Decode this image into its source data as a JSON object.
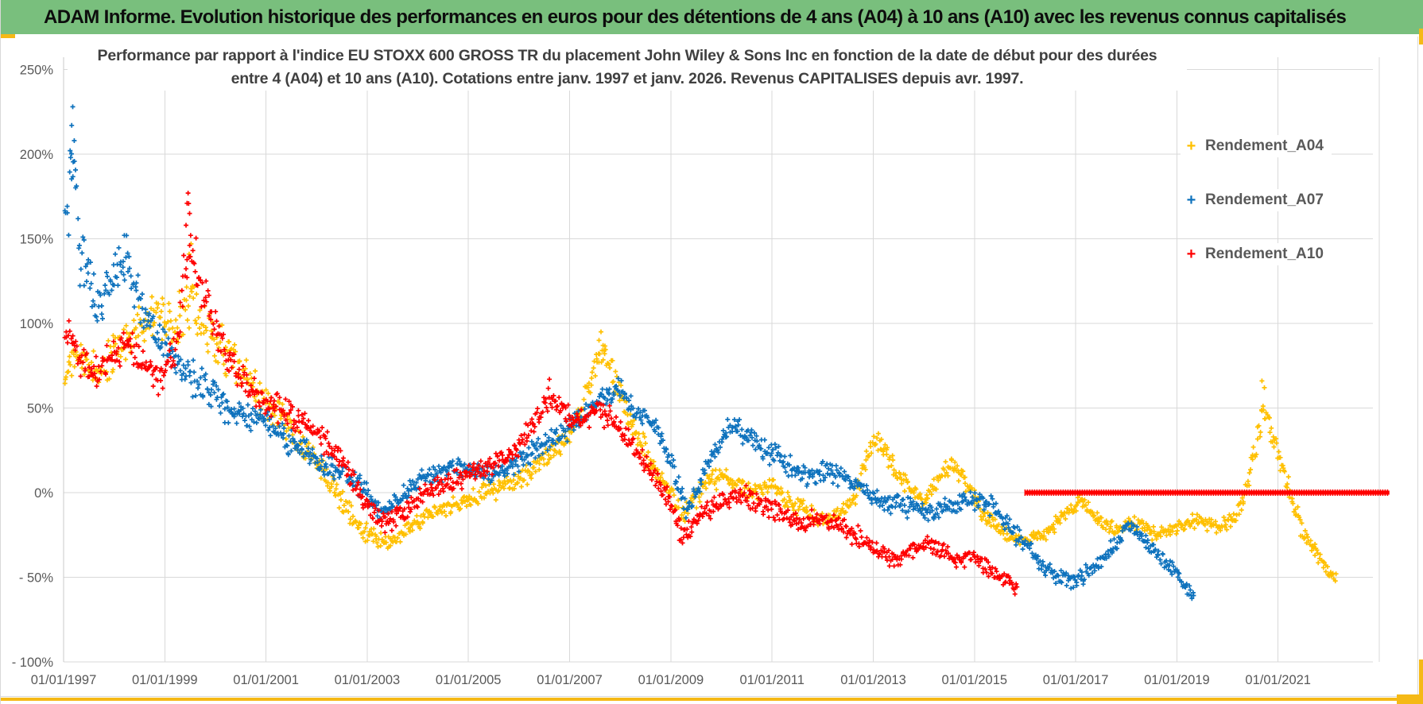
{
  "header": {
    "title": "ADAM Informe. Evolution historique des performances en euros pour des détentions de 4 ans (A04) à 10 ans (A10) avec les revenus connus capitalisés",
    "bg_color": "#79bf7d"
  },
  "chart": {
    "title_line1": "Performance par rapport à l'indice EU STOXX 600 GROSS TR  du placement John Wiley & Sons Inc en fonction de la date de début pour des durées",
    "title_line2": "entre 4 (A04) et 10 ans (A10). Cotations entre janv. 1997 et janv. 2026. Revenus CAPITALISES depuis avr. 1997.",
    "legend": [
      {
        "label": "Rendement_A04",
        "symbol": "+",
        "color": "#ffc000"
      },
      {
        "label": "Rendement_A07",
        "symbol": "+",
        "color": "#0e72bd"
      },
      {
        "label": "Rendement_A10",
        "symbol": "+",
        "color": "#fe0000"
      }
    ]
  },
  "accents": {
    "selection_gold": "#f5b916",
    "gridline": "#d9d9d9",
    "axis_text": "#595959"
  },
  "chart_data": {
    "type": "scatter",
    "marker": "plus",
    "grid": true,
    "legend_position": "right-inside-top",
    "values_estimated": true,
    "title": "Performance par rapport à l'indice EU STOXX 600 GROSS TR du placement John Wiley & Sons Inc en fonction de la date de début pour des durées entre 4 (A04) et 10 ans (A10). Cotations entre janv. 1997 et janv. 2026. Revenus CAPITALISES depuis avr. 1997.",
    "x_axis": {
      "tick_labels": [
        "01/01/1997",
        "01/01/1999",
        "01/01/2001",
        "01/01/2003",
        "01/01/2005",
        "01/01/2007",
        "01/01/2009",
        "01/01/2011",
        "01/01/2013",
        "01/01/2015",
        "01/01/2017",
        "01/01/2019",
        "01/01/2021"
      ],
      "tick_years": [
        1997,
        1999,
        2001,
        2003,
        2005,
        2007,
        2009,
        2011,
        2013,
        2015,
        2017,
        2019,
        2021
      ],
      "gridline_years": [
        1997,
        1999,
        2001,
        2003,
        2005,
        2007,
        2009,
        2011,
        2013,
        2015,
        2017,
        2019,
        2021,
        2023
      ],
      "range": [
        1997,
        2023.2
      ]
    },
    "y_axis": {
      "tick_labels": [
        "250%",
        "200%",
        "150%",
        "100%",
        "50%",
        "0%",
        "- 50%",
        "- 100%"
      ],
      "tick_values": [
        250,
        200,
        150,
        100,
        50,
        0,
        -50,
        -100
      ],
      "range": [
        -100,
        250
      ],
      "unit": "%"
    },
    "series": [
      {
        "name": "Rendement_A04",
        "color": "#ffc000",
        "x_start": 1997.02,
        "x_end": 2022.15,
        "anchors": [
          [
            1997.02,
            68,
            16
          ],
          [
            1997.25,
            84,
            14
          ],
          [
            1997.55,
            72,
            12
          ],
          [
            1998.0,
            80,
            16
          ],
          [
            1998.4,
            95,
            15
          ],
          [
            1998.8,
            104,
            18
          ],
          [
            1999.2,
            100,
            20
          ],
          [
            1999.5,
            118,
            24
          ],
          [
            1999.8,
            96,
            18
          ],
          [
            2000.2,
            84,
            16
          ],
          [
            2000.6,
            70,
            14
          ],
          [
            2001.0,
            55,
            13
          ],
          [
            2001.4,
            40,
            11
          ],
          [
            2001.8,
            25,
            10
          ],
          [
            2002.2,
            10,
            9
          ],
          [
            2002.6,
            -10,
            8
          ],
          [
            2003.0,
            -25,
            7
          ],
          [
            2003.4,
            -30,
            6
          ],
          [
            2003.8,
            -22,
            6
          ],
          [
            2004.2,
            -12,
            6
          ],
          [
            2004.7,
            -7,
            6
          ],
          [
            2005.1,
            -3,
            7
          ],
          [
            2005.5,
            2,
            7
          ],
          [
            2005.9,
            6,
            7
          ],
          [
            2006.3,
            14,
            7
          ],
          [
            2006.7,
            24,
            8
          ],
          [
            2007.0,
            35,
            8
          ],
          [
            2007.3,
            55,
            9
          ],
          [
            2007.6,
            84,
            10
          ],
          [
            2007.85,
            72,
            10
          ],
          [
            2008.1,
            50,
            10
          ],
          [
            2008.4,
            30,
            9
          ],
          [
            2008.7,
            12,
            8
          ],
          [
            2009.0,
            0,
            8
          ],
          [
            2009.25,
            -14,
            8
          ],
          [
            2009.5,
            -2,
            8
          ],
          [
            2009.8,
            9,
            7
          ],
          [
            2010.2,
            7,
            7
          ],
          [
            2010.6,
            0,
            7
          ],
          [
            2011.0,
            4,
            7
          ],
          [
            2011.4,
            -6,
            7
          ],
          [
            2011.8,
            -14,
            6
          ],
          [
            2012.2,
            -17,
            6
          ],
          [
            2012.6,
            -6,
            7
          ],
          [
            2013.0,
            33,
            9
          ],
          [
            2013.3,
            20,
            8
          ],
          [
            2013.7,
            4,
            7
          ],
          [
            2014.0,
            -7,
            6
          ],
          [
            2014.5,
            18,
            8
          ],
          [
            2014.8,
            8,
            7
          ],
          [
            2015.2,
            -14,
            6
          ],
          [
            2015.6,
            -24,
            5
          ],
          [
            2016.0,
            -28,
            5
          ],
          [
            2016.4,
            -25,
            5
          ],
          [
            2016.8,
            -12,
            6
          ],
          [
            2017.1,
            -3,
            6
          ],
          [
            2017.4,
            -15,
            5
          ],
          [
            2017.8,
            -22,
            5
          ],
          [
            2018.2,
            -18,
            5
          ],
          [
            2018.6,
            -25,
            5
          ],
          [
            2019.0,
            -20,
            5
          ],
          [
            2019.4,
            -16,
            5
          ],
          [
            2019.8,
            -21,
            5
          ],
          [
            2020.2,
            -13,
            6
          ],
          [
            2020.5,
            18,
            10
          ],
          [
            2020.7,
            52,
            11
          ],
          [
            2020.9,
            34,
            9
          ],
          [
            2021.2,
            4,
            8
          ],
          [
            2021.5,
            -24,
            6
          ],
          [
            2021.8,
            -37,
            5
          ],
          [
            2022.15,
            -52,
            4
          ]
        ],
        "highlights": [
          [
            2007.62,
            95
          ],
          [
            2007.58,
            90
          ],
          [
            2007.66,
            87
          ],
          [
            2020.68,
            66
          ],
          [
            2020.73,
            62
          ],
          [
            1999.52,
            147
          ],
          [
            1999.48,
            141
          ]
        ]
      },
      {
        "name": "Rendement_A07",
        "color": "#0e72bd",
        "x_start": 1997.03,
        "x_end": 2019.33,
        "anchors": [
          [
            1997.03,
            150,
            25
          ],
          [
            1997.17,
            196,
            32
          ],
          [
            1997.35,
            135,
            22
          ],
          [
            1997.7,
            112,
            16
          ],
          [
            1998.0,
            126,
            18
          ],
          [
            1998.25,
            138,
            16
          ],
          [
            1998.55,
            110,
            15
          ],
          [
            1998.85,
            92,
            13
          ],
          [
            1999.2,
            80,
            12
          ],
          [
            1999.6,
            66,
            12
          ],
          [
            2000.0,
            56,
            12
          ],
          [
            2000.4,
            46,
            10
          ],
          [
            2000.9,
            44,
            10
          ],
          [
            2001.3,
            34,
            10
          ],
          [
            2001.7,
            27,
            9
          ],
          [
            2002.1,
            16,
            8
          ],
          [
            2002.5,
            11,
            8
          ],
          [
            2002.9,
            4,
            8
          ],
          [
            2003.25,
            -12,
            7
          ],
          [
            2003.6,
            -5,
            7
          ],
          [
            2004.0,
            8,
            7
          ],
          [
            2004.5,
            13,
            7
          ],
          [
            2004.9,
            15,
            7
          ],
          [
            2005.3,
            10,
            7
          ],
          [
            2005.7,
            13,
            7
          ],
          [
            2006.1,
            21,
            7
          ],
          [
            2006.5,
            29,
            8
          ],
          [
            2006.9,
            36,
            8
          ],
          [
            2007.3,
            47,
            8
          ],
          [
            2007.7,
            57,
            8
          ],
          [
            2007.95,
            62,
            8
          ],
          [
            2008.2,
            51,
            8
          ],
          [
            2008.5,
            45,
            8
          ],
          [
            2008.8,
            34,
            8
          ],
          [
            2009.1,
            8,
            9
          ],
          [
            2009.3,
            -11,
            8
          ],
          [
            2009.6,
            6,
            8
          ],
          [
            2009.9,
            26,
            9
          ],
          [
            2010.2,
            41,
            8
          ],
          [
            2010.5,
            34,
            8
          ],
          [
            2010.9,
            24,
            8
          ],
          [
            2011.3,
            17,
            8
          ],
          [
            2011.7,
            10,
            8
          ],
          [
            2012.1,
            12,
            8
          ],
          [
            2012.5,
            9,
            7
          ],
          [
            2012.9,
            -1,
            7
          ],
          [
            2013.3,
            -6,
            7
          ],
          [
            2013.7,
            -9,
            7
          ],
          [
            2014.1,
            -12,
            7
          ],
          [
            2014.5,
            -8,
            7
          ],
          [
            2014.9,
            -5,
            7
          ],
          [
            2015.15,
            -3,
            7
          ],
          [
            2015.45,
            -11,
            7
          ],
          [
            2015.75,
            -23,
            7
          ],
          [
            2016.05,
            -33,
            7
          ],
          [
            2016.35,
            -43,
            6
          ],
          [
            2016.65,
            -49,
            6
          ],
          [
            2016.95,
            -53,
            6
          ],
          [
            2017.25,
            -47,
            6
          ],
          [
            2017.55,
            -39,
            6
          ],
          [
            2017.85,
            -27,
            6
          ],
          [
            2018.05,
            -19,
            6
          ],
          [
            2018.35,
            -29,
            6
          ],
          [
            2018.65,
            -38,
            6
          ],
          [
            2018.95,
            -46,
            5
          ],
          [
            2019.15,
            -55,
            5
          ],
          [
            2019.33,
            -62,
            4
          ]
        ],
        "highlights": [
          [
            1997.18,
            228
          ],
          [
            1997.16,
            217
          ],
          [
            1997.21,
            208
          ],
          [
            1997.14,
            198
          ],
          [
            1998.2,
            152
          ]
        ]
      },
      {
        "name": "Rendement_A10",
        "color": "#fe0000",
        "x_start": 1997.03,
        "x_end": 2015.85,
        "anchors": [
          [
            1997.03,
            95,
            12
          ],
          [
            1997.3,
            81,
            12
          ],
          [
            1997.6,
            69,
            10
          ],
          [
            1998.0,
            82,
            12
          ],
          [
            1998.3,
            90,
            12
          ],
          [
            1998.6,
            76,
            11
          ],
          [
            1998.95,
            66,
            11
          ],
          [
            1999.25,
            92,
            15
          ],
          [
            1999.46,
            148,
            24
          ],
          [
            1999.65,
            132,
            18
          ],
          [
            1999.95,
            100,
            15
          ],
          [
            2000.25,
            80,
            12
          ],
          [
            2000.65,
            62,
            10
          ],
          [
            2001.05,
            52,
            10
          ],
          [
            2001.45,
            46,
            10
          ],
          [
            2001.85,
            40,
            9
          ],
          [
            2002.25,
            28,
            9
          ],
          [
            2002.65,
            12,
            8
          ],
          [
            2003.0,
            -9,
            8
          ],
          [
            2003.35,
            -19,
            7
          ],
          [
            2003.7,
            -11,
            7
          ],
          [
            2004.1,
            -1,
            7
          ],
          [
            2004.5,
            5,
            7
          ],
          [
            2004.9,
            9,
            7
          ],
          [
            2005.3,
            15,
            7
          ],
          [
            2005.7,
            19,
            7
          ],
          [
            2006.05,
            29,
            8
          ],
          [
            2006.35,
            44,
            8
          ],
          [
            2006.6,
            57,
            8
          ],
          [
            2006.9,
            47,
            8
          ],
          [
            2007.2,
            42,
            8
          ],
          [
            2007.5,
            48,
            8
          ],
          [
            2007.8,
            44,
            8
          ],
          [
            2008.1,
            33,
            8
          ],
          [
            2008.4,
            21,
            8
          ],
          [
            2008.7,
            8,
            8
          ],
          [
            2009.0,
            -7,
            8
          ],
          [
            2009.25,
            -27,
            8
          ],
          [
            2009.55,
            -14,
            7
          ],
          [
            2009.85,
            -8,
            7
          ],
          [
            2010.15,
            -4,
            7
          ],
          [
            2010.45,
            -2,
            7
          ],
          [
            2010.85,
            -8,
            7
          ],
          [
            2011.25,
            -13,
            7
          ],
          [
            2011.65,
            -18,
            7
          ],
          [
            2012.05,
            -15,
            7
          ],
          [
            2012.45,
            -22,
            7
          ],
          [
            2012.85,
            -28,
            7
          ],
          [
            2013.15,
            -35,
            7
          ],
          [
            2013.45,
            -41,
            6
          ],
          [
            2013.75,
            -35,
            6
          ],
          [
            2014.05,
            -30,
            6
          ],
          [
            2014.35,
            -35,
            6
          ],
          [
            2014.65,
            -40,
            6
          ],
          [
            2014.95,
            -38,
            6
          ],
          [
            2015.25,
            -45,
            6
          ],
          [
            2015.55,
            -51,
            5
          ],
          [
            2015.85,
            -57,
            4
          ]
        ],
        "highlights": [
          [
            1999.46,
            177
          ],
          [
            1999.44,
            171
          ],
          [
            1999.49,
            165
          ],
          [
            1999.42,
            158
          ],
          [
            1999.51,
            152
          ],
          [
            2006.6,
            67
          ]
        ],
        "flat_zero_segment": {
          "from": 2016.0,
          "to": 2023.2,
          "value": 0
        }
      }
    ]
  }
}
